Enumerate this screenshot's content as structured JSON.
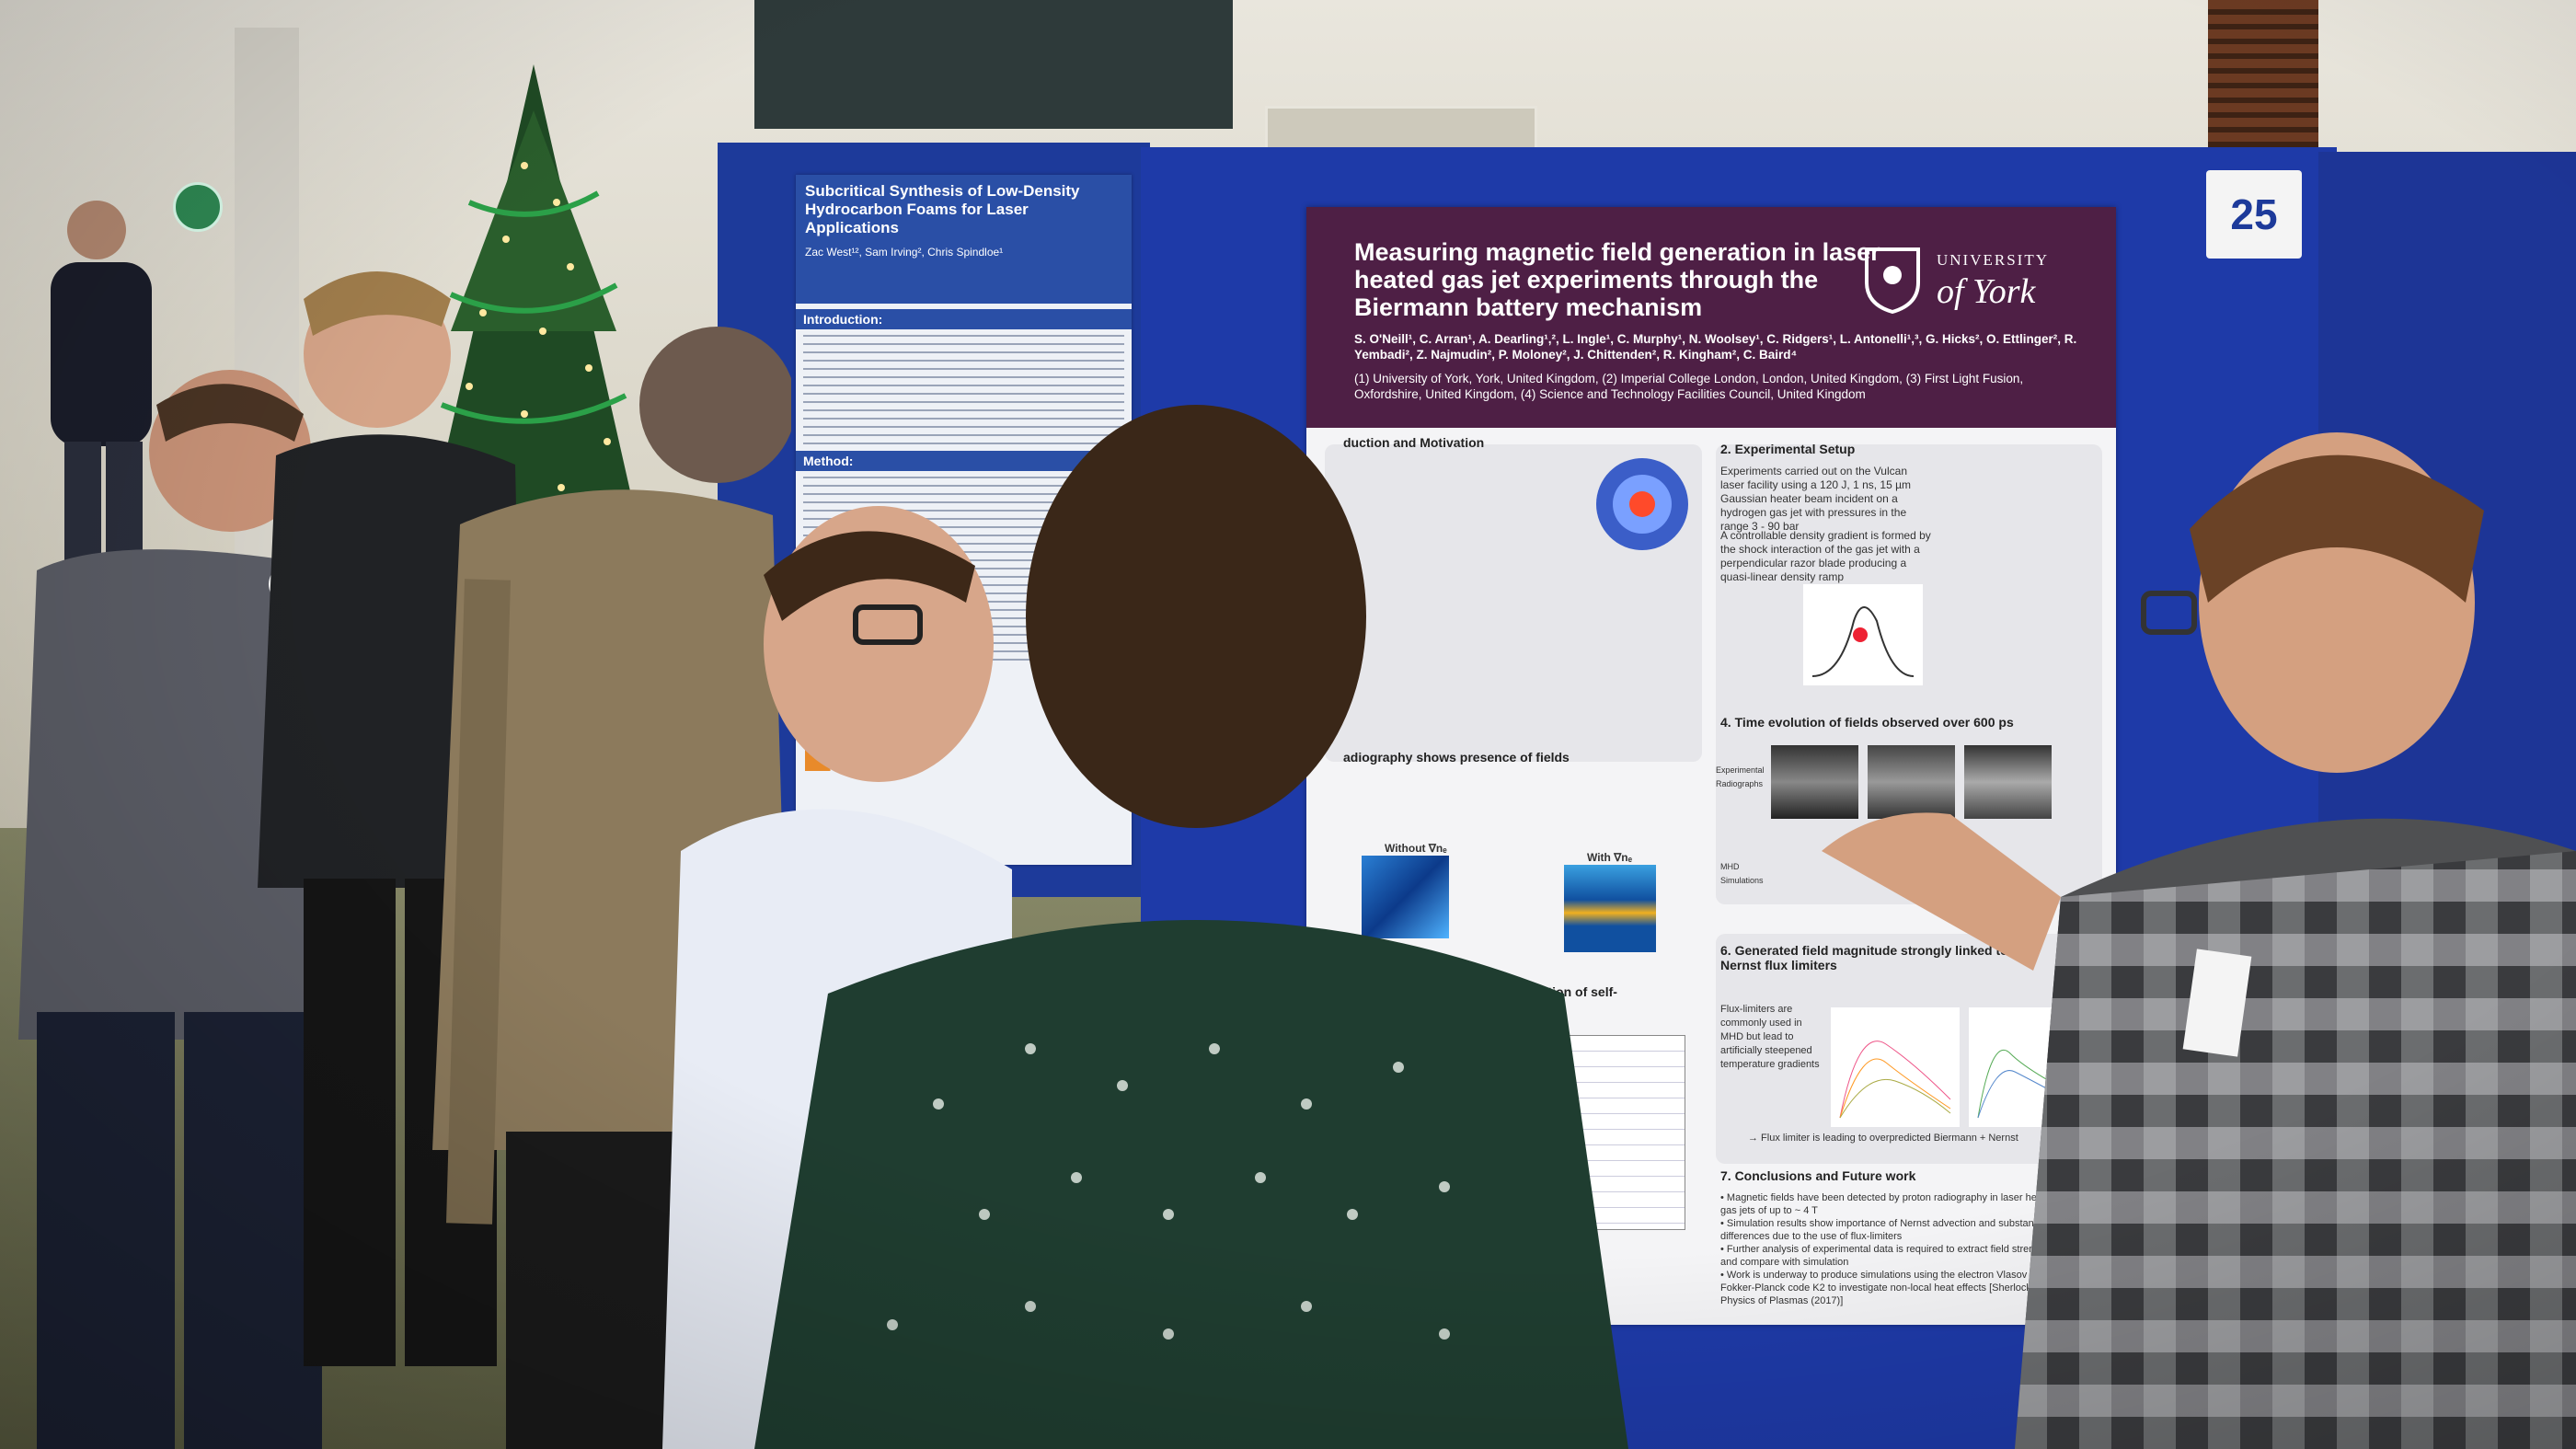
{
  "scene": "poster session",
  "poster_number": "25",
  "main_poster": {
    "title": "Measuring magnetic field generation in laser heated gas jet experiments through the Biermann battery mechanism",
    "authors": "S. O'Neill¹, C. Arran¹, A. Dearling¹,², L. Ingle¹, C. Murphy¹, N. Woolsey¹, C. Ridgers¹, L. Antonelli¹,³, G. Hicks², O. Ettlinger², R. Yembadi², Z. Najmudin², P. Moloney², J. Chittenden², R. Kingham², C. Baird⁴",
    "affiliations": "(1) University of York, York, United Kingdom, (2) Imperial College London, London, United Kingdom, (3) First Light Fusion, Oxfordshire, United Kingdom, (4) Science and Technology Facilities Council, United Kingdom",
    "logo_top": "UNIVERSITY",
    "logo_bottom": "of York",
    "sections": {
      "s1_title": "duction and Motivation",
      "s2_title": "2. Experimental Setup",
      "s2_text": "Experiments carried out on the Vulcan laser facility using a 120 J, 1 ns, 15 µm Gaussian heater beam incident on a hydrogen gas jet with pressures in the range 3 - 90 bar",
      "s2_text2": "A controllable density gradient is formed by the shock interaction of the gas jet with a perpendicular razor blade producing a quasi-linear density ramp",
      "s3_title": "adiography shows presence of fields",
      "s3_fig_a": "Without ∇nₑ",
      "s3_fig_b": "With ∇nₑ",
      "s4_title": "4. Time evolution of fields observed over 600 ps",
      "s4_label_a": "Experimental Radiographs",
      "s4_label_b": "MHD Simulations",
      "s5_title": "D simulations show strong advection of self-\nted fields by Nernst",
      "s6_title": "6. Generated field magnitude strongly linked to\nNernst flux limiters",
      "s6_text": "Flux-limiters are commonly used in MHD but lead to artificially steepened temperature gradients",
      "s6_caption": "→ Flux limiter is leading to overpredicted Biermann + Nernst",
      "s7_title": "7. Conclusions and Future work",
      "s7_text": "• Magnetic fields have been detected by proton radiography in laser heated gas jets of up to ~ 4 T\n• Simulation results show importance of Nernst advection and substantial differences due to the use of flux-limiters\n• Further analysis of experimental data is required to extract field strengths and compare with simulation\n• Work is underway to produce simulations using the electron Vlasov Fokker-Planck code K2 to investigate non-local heat effects [Sherlock et al., Physics of Plasmas (2017)]"
    }
  },
  "left_poster": {
    "title": "Subcritical Synthesis of Low-Density Hydrocarbon Foams for Laser Applications",
    "authors": "Zac West¹², Sam Irving², Chris Spindloe¹",
    "intro_heading": "Introduction:",
    "method_heading": "Method:"
  },
  "colors": {
    "board_blue": "#1e3aa8",
    "poster_header": "#4e1f45",
    "left_poster_header": "#2a4fa6"
  }
}
